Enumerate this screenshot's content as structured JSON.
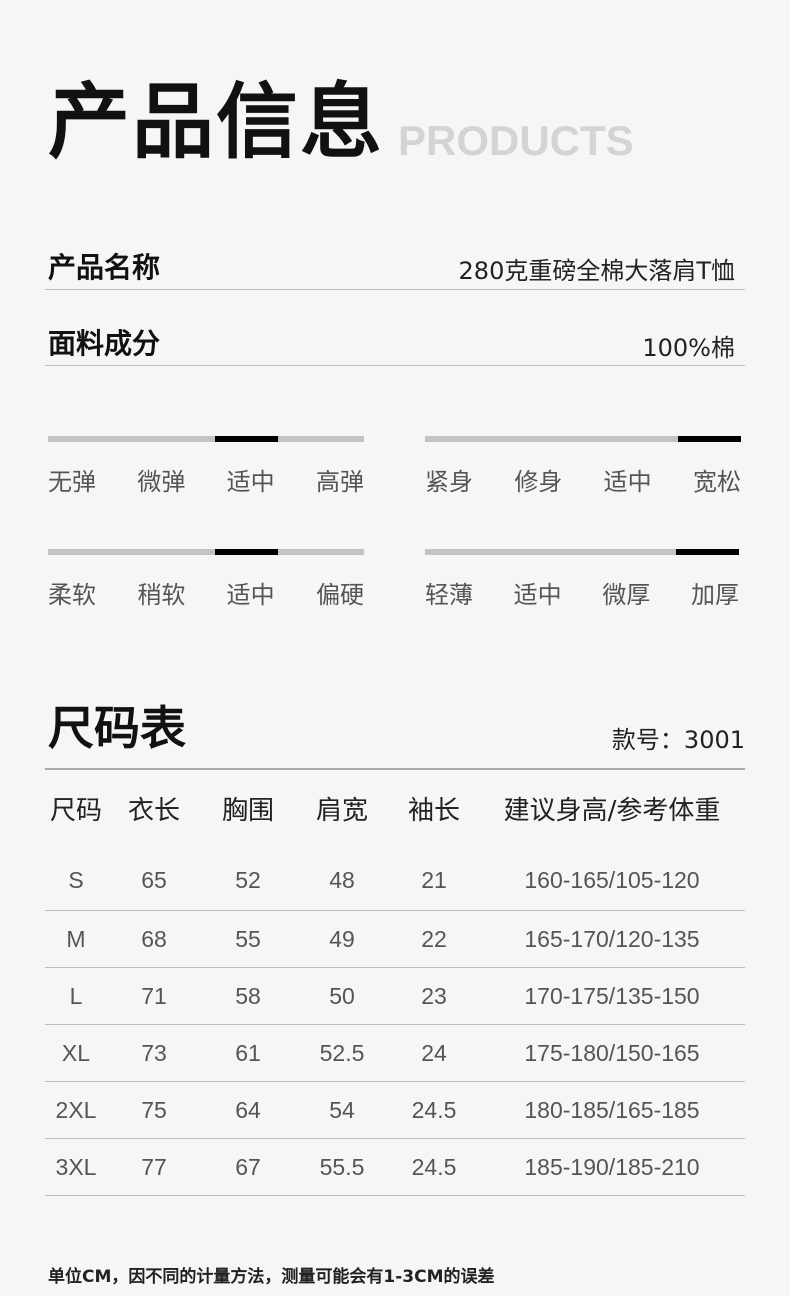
{
  "header": {
    "title": "产品信息",
    "subtitle_en": "PRODUCTS"
  },
  "info": [
    {
      "label": "产品名称",
      "value": "280克重磅全棉大落肩T恤"
    },
    {
      "label": "面料成分",
      "value": "100%棉"
    }
  ],
  "scales": [
    {
      "options": [
        "无弹",
        "微弹",
        "适中",
        "高弹"
      ],
      "selected": 2
    },
    {
      "options": [
        "紧身",
        "修身",
        "适中",
        "宽松"
      ],
      "selected": 3
    },
    {
      "options": [
        "柔软",
        "稍软",
        "适中",
        "偏硬"
      ],
      "selected": 2
    },
    {
      "options": [
        "轻薄",
        "适中",
        "微厚",
        "加厚"
      ],
      "selected": 3
    }
  ],
  "colors": {
    "background": "#f6f6f6",
    "track": "#c3c3c3",
    "thumb": "#000000",
    "watermark_text": "#d4d4d4"
  },
  "size_chart": {
    "title": "尺码表",
    "style_no": "款号：3001",
    "headers": [
      "尺码",
      "衣长",
      "胸围",
      "肩宽",
      "袖长",
      "建议身高/参考体重"
    ],
    "rows": [
      [
        "S",
        "65",
        "52",
        "48",
        "21",
        "160-165/105-120"
      ],
      [
        "M",
        "68",
        "55",
        "49",
        "22",
        "165-170/120-135"
      ],
      [
        "L",
        "71",
        "58",
        "50",
        "23",
        "170-175/135-150"
      ],
      [
        "XL",
        "73",
        "61",
        "52.5",
        "24",
        "175-180/150-165"
      ],
      [
        "2XL",
        "75",
        "64",
        "54",
        "24.5",
        "180-185/165-185"
      ],
      [
        "3XL",
        "77",
        "67",
        "55.5",
        "24.5",
        "185-190/185-210"
      ]
    ]
  },
  "note": "单位CM，因不同的计量方法，测量可能会有1-3CM的误差"
}
